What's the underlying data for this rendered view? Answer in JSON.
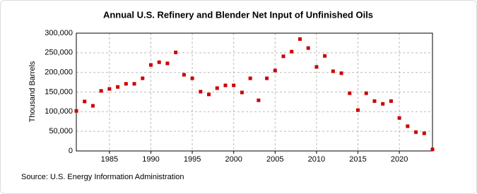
{
  "chart_data": {
    "type": "scatter",
    "title": "Annual U.S. Refinery and Blender Net Input of Unfinished Oils",
    "y_label": "Thousand Barrels",
    "source": "Source: U.S. Energy Information Administration",
    "x": [
      1981,
      1982,
      1983,
      1984,
      1985,
      1986,
      1987,
      1988,
      1989,
      1990,
      1991,
      1992,
      1993,
      1994,
      1995,
      1996,
      1997,
      1998,
      1999,
      2000,
      2001,
      2002,
      2003,
      2004,
      2005,
      2006,
      2007,
      2008,
      2009,
      2010,
      2011,
      2012,
      2013,
      2014,
      2015,
      2016,
      2017,
      2018,
      2019,
      2020,
      2021,
      2022,
      2023,
      2024
    ],
    "values": [
      102000,
      126000,
      115000,
      153000,
      158000,
      163000,
      171000,
      171000,
      185000,
      219000,
      226000,
      223000,
      251000,
      194000,
      185000,
      151000,
      144000,
      160000,
      167000,
      167000,
      149000,
      185000,
      129000,
      185000,
      205000,
      241000,
      253000,
      285000,
      262000,
      214000,
      242000,
      203000,
      198000,
      147000,
      104000,
      147000,
      127000,
      120000,
      127000,
      84000,
      63000,
      48000,
      45000,
      4000
    ],
    "color": "#cc0000",
    "xlim": [
      1981,
      2024
    ],
    "xticks": [
      1985,
      1990,
      1995,
      2000,
      2005,
      2010,
      2015,
      2020
    ],
    "ylim": [
      0,
      300000
    ],
    "yticks": [
      0,
      {
        "value": 50000,
        "label": "50,000"
      },
      {
        "value": 100000,
        "label": "100,000"
      },
      {
        "value": 150000,
        "label": "150,000"
      },
      {
        "value": 200000,
        "label": "200,000"
      },
      {
        "value": 250000,
        "label": "250,000"
      },
      {
        "value": 300000,
        "label": "300,000"
      }
    ],
    "grid": true
  }
}
